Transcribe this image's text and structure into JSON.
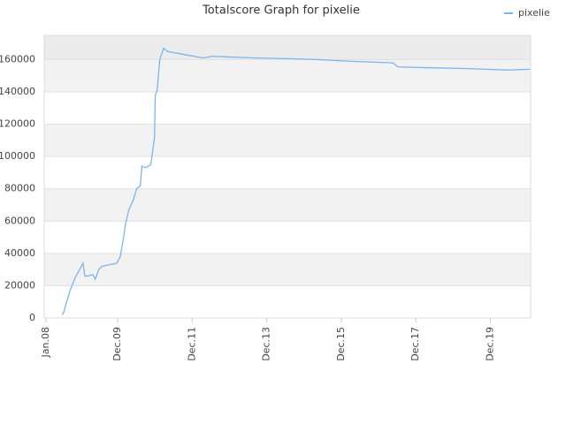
{
  "chart_data": {
    "type": "line",
    "title": "Totalscore Graph for pixelie",
    "x": [
      2008.43,
      2008.47,
      2008.55,
      2008.66,
      2008.78,
      2008.9,
      2008.99,
      2009.04,
      2009.13,
      2009.25,
      2009.32,
      2009.41,
      2009.5,
      2009.71,
      2009.9,
      2009.99,
      2010.08,
      2010.13,
      2010.22,
      2010.34,
      2010.43,
      2010.53,
      2010.57,
      2010.67,
      2010.81,
      2010.91,
      2010.93,
      2010.98,
      2011.05,
      2011.15,
      2011.26,
      2011.74,
      2012.21,
      2012.45,
      2013.63,
      2014.58,
      2015.29,
      2016.12,
      2017.31,
      2017.43,
      2018.14,
      2019.21,
      2020.39,
      2020.98
    ],
    "series": [
      {
        "name": "pixelie",
        "color": "#7cb5ec",
        "values": [
          2000,
          3300,
          10000,
          18000,
          25000,
          30000,
          34000,
          26000,
          26000,
          27000,
          24000,
          30000,
          32000,
          33000,
          34000,
          38000,
          50000,
          58000,
          67000,
          73000,
          80000,
          82000,
          94000,
          93000,
          95000,
          112000,
          138000,
          141000,
          160000,
          167000,
          165000,
          163000,
          161000,
          162000,
          161000,
          160500,
          160000,
          159000,
          158000,
          155500,
          155000,
          154500,
          153500,
          154000
        ]
      }
    ],
    "xlim": [
      2007.95,
      2021.0
    ],
    "xticks": [
      {
        "value": 2008.0,
        "label": "Jan.08"
      },
      {
        "value": 2009.92,
        "label": "Dec.09"
      },
      {
        "value": 2011.92,
        "label": "Dec.11"
      },
      {
        "value": 2013.92,
        "label": "Dec.13"
      },
      {
        "value": 2015.92,
        "label": "Dec.15"
      },
      {
        "value": 2017.92,
        "label": "Dec.17"
      },
      {
        "value": 2019.92,
        "label": "Dec.19"
      }
    ],
    "ylim": [
      0,
      175000
    ],
    "yticks": [
      0,
      20000,
      40000,
      60000,
      80000,
      100000,
      120000,
      140000,
      160000
    ],
    "grid": true,
    "legend": "top-right"
  }
}
